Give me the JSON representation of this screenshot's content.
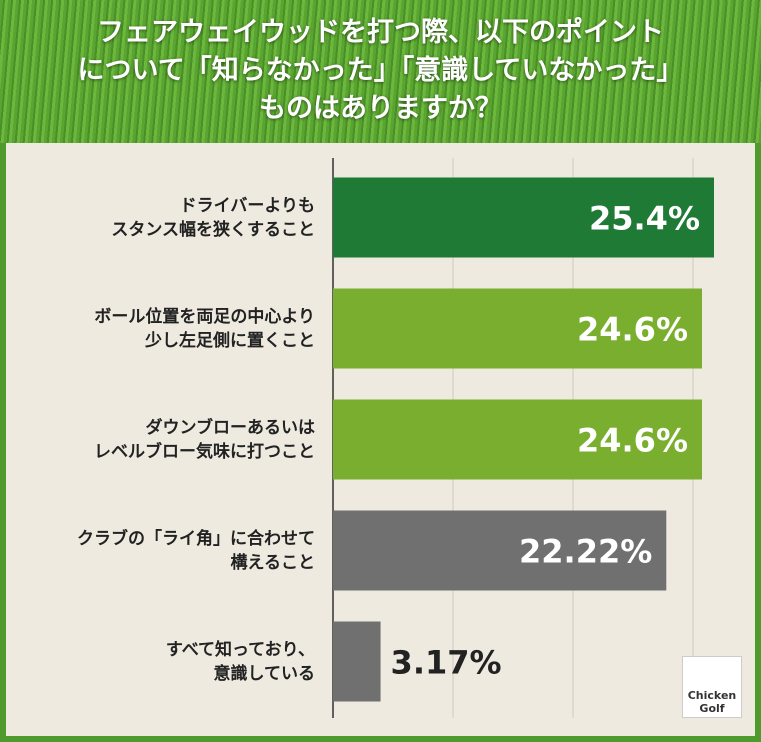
{
  "chart_data": {
    "type": "barh",
    "title": "フェアウェイウッドを打つ際、以下のポイント\nについて「知らなかった」「意識していなかった」\nものはありますか？",
    "categories": [
      "ドライバーよりも\nスタンス幅を狭くすること",
      "ボール位置を両足の中心より\n少し左足側に置くこと",
      "ダウンブローあるいは\nレベルブロー気味に打つこと",
      "クラブの「ライ角」に合わせて\n構えること",
      "すべて知っており、\n意識している"
    ],
    "values": [
      25.4,
      24.6,
      24.6,
      22.22,
      3.17
    ],
    "value_labels": [
      "25.4%",
      "24.6%",
      "24.6%",
      "22.22%",
      "3.17%"
    ],
    "colors": [
      "#1f7a36",
      "#7aae2e",
      "#7aae2e",
      "#707070",
      "#707070"
    ],
    "xlim": [
      0,
      27
    ],
    "xticks": [
      0,
      8,
      16,
      24
    ],
    "grid": true,
    "logo": "Chicken\nGolf"
  }
}
